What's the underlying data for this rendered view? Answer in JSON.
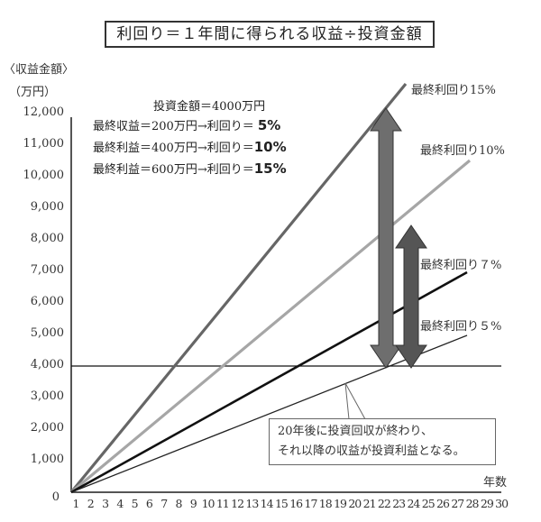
{
  "title": "利回り＝１年間に得られる収益÷投資金額",
  "axes": {
    "y_label_line1": "〈収益金額〉",
    "y_label_line2": "（万円）",
    "x_label": "年数",
    "y_ticks": [
      "12,000",
      "11,000",
      "10,000",
      "9,000",
      "8,000",
      "7,000",
      "6,000",
      "5,000",
      "4,000",
      "3,000",
      "2,000",
      "1,000",
      "0"
    ],
    "x_ticks": [
      "1",
      "2",
      "3",
      "4",
      "5",
      "6",
      "7",
      "8",
      "9",
      "10",
      "11",
      "12",
      "13",
      "14",
      "15",
      "16",
      "17",
      "18",
      "19",
      "20",
      "21",
      "22",
      "23",
      "24",
      "25",
      "26",
      "27",
      "28",
      "29",
      "30"
    ]
  },
  "info": {
    "line1": "投資金額＝4000万円",
    "line2_prefix": "最終収益＝200万円→利回り＝",
    "line2_value": "5%",
    "line3_prefix": "最終利益＝400万円→利回り＝",
    "line3_value": "10%",
    "line4_prefix": "最終利益＝600万円→利回り＝",
    "line4_value": "15%"
  },
  "series_labels": {
    "s15": "最終利回り15%",
    "s10": "最終利回り10%",
    "s7": "最終利回り７%",
    "s5": "最終利回り５%"
  },
  "note": {
    "line1": "20年後に投資回収が終わり、",
    "line2": "それ以降の収益が投資利益となる。"
  },
  "colors": {
    "s15": "#666666",
    "s10": "#a6a6a6",
    "s7": "#111111",
    "s5": "#222222",
    "arrow1": "#6e6e6e",
    "arrow2": "#555555",
    "reference_line": "#111111"
  },
  "chart_data": {
    "type": "line",
    "title": "利回り＝１年間に得られる収益÷投資金額",
    "xlabel": "年数",
    "ylabel": "収益金額（万円）",
    "xlim": [
      0,
      30
    ],
    "ylim": [
      0,
      12000
    ],
    "grid": false,
    "series": [
      {
        "name": "最終利回り15%",
        "x": [
          0,
          23.5
        ],
        "values": [
          0,
          13000
        ],
        "annual_income": 600
      },
      {
        "name": "最終利回り10%",
        "x": [
          0,
          27
        ],
        "values": [
          0,
          10500
        ],
        "annual_income": 400
      },
      {
        "name": "最終利回り７%",
        "x": [
          0,
          28
        ],
        "values": [
          0,
          7000
        ],
        "annual_income": 280
      },
      {
        "name": "最終利回り５%",
        "x": [
          0,
          28
        ],
        "values": [
          0,
          5000
        ],
        "annual_income": 200
      }
    ],
    "reference_lines": [
      {
        "y": 4000,
        "label": "投資金額＝4000万円"
      }
    ],
    "annotations": [
      "投資金額＝4000万円",
      "最終収益＝200万円→利回り＝5%",
      "最終利益＝400万円→利回り＝10%",
      "最終利益＝600万円→利回り＝15%",
      "20年後に投資回収が終わり、それ以降の収益が投資利益となる。"
    ],
    "arrows": [
      {
        "x_year": 22.5,
        "from": 4000,
        "to": 12000
      },
      {
        "x_year": 24.2,
        "from": 4000,
        "to": 8500
      }
    ]
  }
}
